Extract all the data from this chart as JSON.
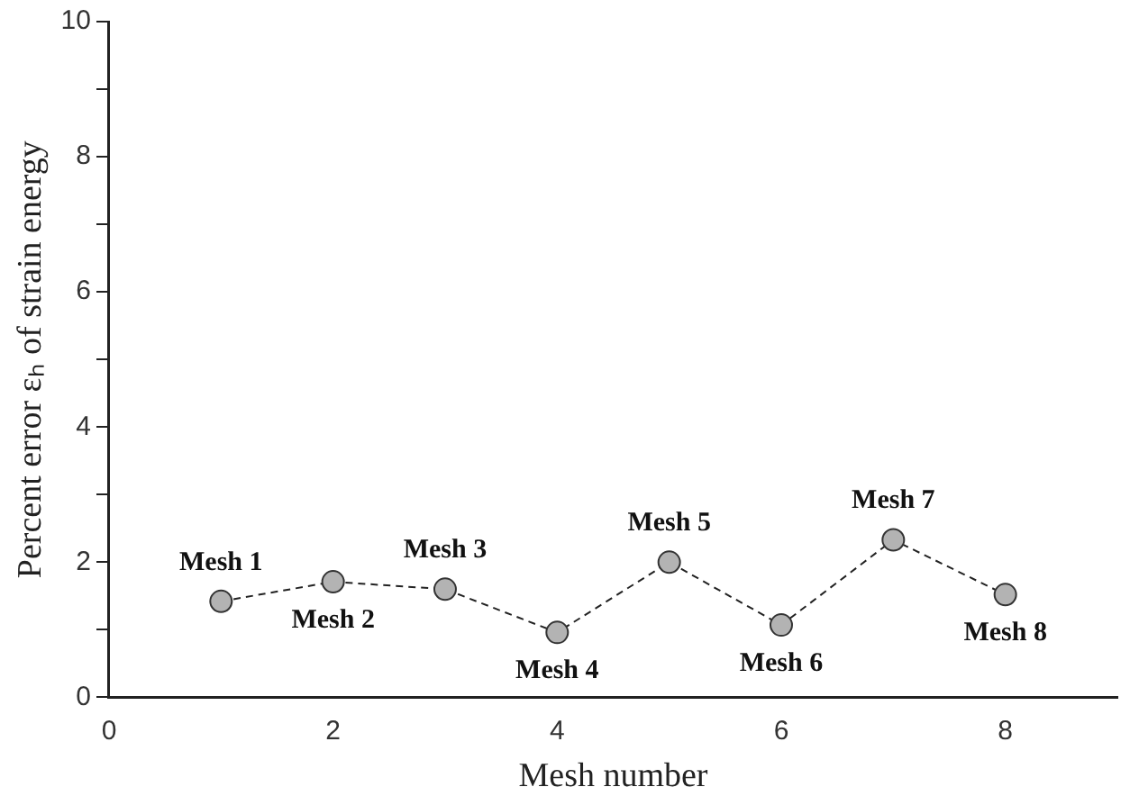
{
  "chart_data": {
    "type": "line",
    "xlabel": "Mesh number",
    "ylabel": "Percent error εₕ of strain energy",
    "x": [
      1,
      2,
      3,
      4,
      5,
      6,
      7,
      8
    ],
    "series": [
      {
        "color": "#b3b3b3",
        "values": [
          1.42,
          1.71,
          1.6,
          0.96,
          2.0,
          1.07,
          2.33,
          1.52
        ]
      }
    ],
    "xlim": [
      0,
      9
    ],
    "xticks": [
      0,
      2,
      4,
      6,
      8
    ],
    "ylim": [
      0,
      10
    ],
    "yticks": [
      0,
      {
        "value": 1,
        "label": null
      },
      2,
      {
        "value": 3,
        "label": null
      },
      4,
      {
        "value": 5,
        "label": null
      },
      6,
      {
        "value": 7,
        "label": null
      },
      8,
      {
        "value": 9,
        "label": null
      },
      10
    ],
    "marker": "circle",
    "line_style": "dashed",
    "grid": false,
    "legend": false,
    "annotations": [
      {
        "text": "Mesh 1",
        "x": 1,
        "y": 1.42
      },
      {
        "text": "Mesh 2",
        "x": 2,
        "y": 1.71
      },
      {
        "text": "Mesh 3",
        "x": 3,
        "y": 1.6
      },
      {
        "text": "Mesh 4",
        "x": 4,
        "y": 0.96
      },
      {
        "text": "Mesh 5",
        "x": 5,
        "y": 2.0
      },
      {
        "text": "Mesh 6",
        "x": 6,
        "y": 1.07
      },
      {
        "text": "Mesh 7",
        "x": 7,
        "y": 2.33
      },
      {
        "text": "Mesh 8",
        "x": 8,
        "y": 1.52
      }
    ]
  }
}
